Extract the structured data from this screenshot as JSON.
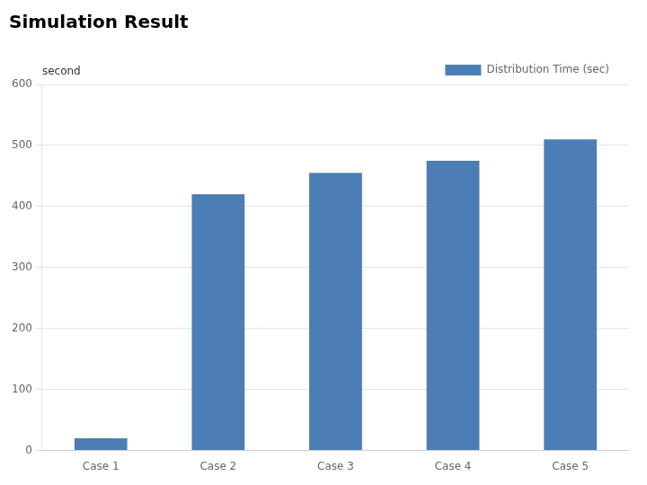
{
  "chart_data": {
    "type": "bar",
    "title": "Simulation Result",
    "ylabel": "second",
    "categories": [
      "Case 1",
      "Case 2",
      "Case 3",
      "Case 4",
      "Case 5"
    ],
    "series": [
      {
        "name": "Distribution Time (sec)",
        "color": "#4d7db5",
        "values": [
          20,
          420,
          455,
          475,
          510
        ]
      }
    ],
    "ylim": [
      0,
      600
    ],
    "yticks": [
      0,
      100,
      200,
      300,
      400,
      500,
      600
    ],
    "grid": true,
    "legend": "upper right"
  }
}
